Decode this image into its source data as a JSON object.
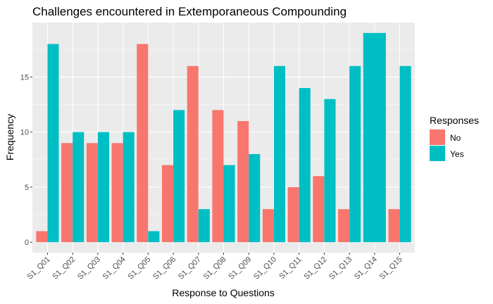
{
  "chart_data": {
    "type": "bar",
    "title": "Challenges encountered in Extemporaneous Compounding",
    "xlabel": "Response to Questions",
    "ylabel": "Frequency",
    "categories": [
      "S1_Q01",
      "S1_Q02",
      "S1_Q03",
      "S1_Q04",
      "S1_Q05",
      "S1_Q06",
      "S1_Q07",
      "S1_Q08",
      "S1_Q09",
      "S1_Q10",
      "S1_Q11",
      "S1_Q12",
      "S1_Q13",
      "S1_Q14",
      "S1_Q15"
    ],
    "series": [
      {
        "name": "No",
        "values": [
          1,
          9,
          9,
          9,
          18,
          7,
          16,
          12,
          11,
          3,
          5,
          6,
          3,
          null,
          3
        ]
      },
      {
        "name": "Yes",
        "values": [
          18,
          10,
          10,
          10,
          1,
          12,
          3,
          7,
          8,
          16,
          14,
          13,
          16,
          19,
          16
        ]
      }
    ],
    "ylim": [
      -0.95,
      19.95
    ],
    "yticks": [
      0,
      5,
      10,
      15
    ],
    "grid": true,
    "legend": {
      "title": "Responses",
      "position": "right"
    },
    "colors": {
      "No": "#F8766D",
      "Yes": "#00BFC4",
      "panel": "#EBEBEB",
      "grid": "#FFFFFF"
    }
  }
}
